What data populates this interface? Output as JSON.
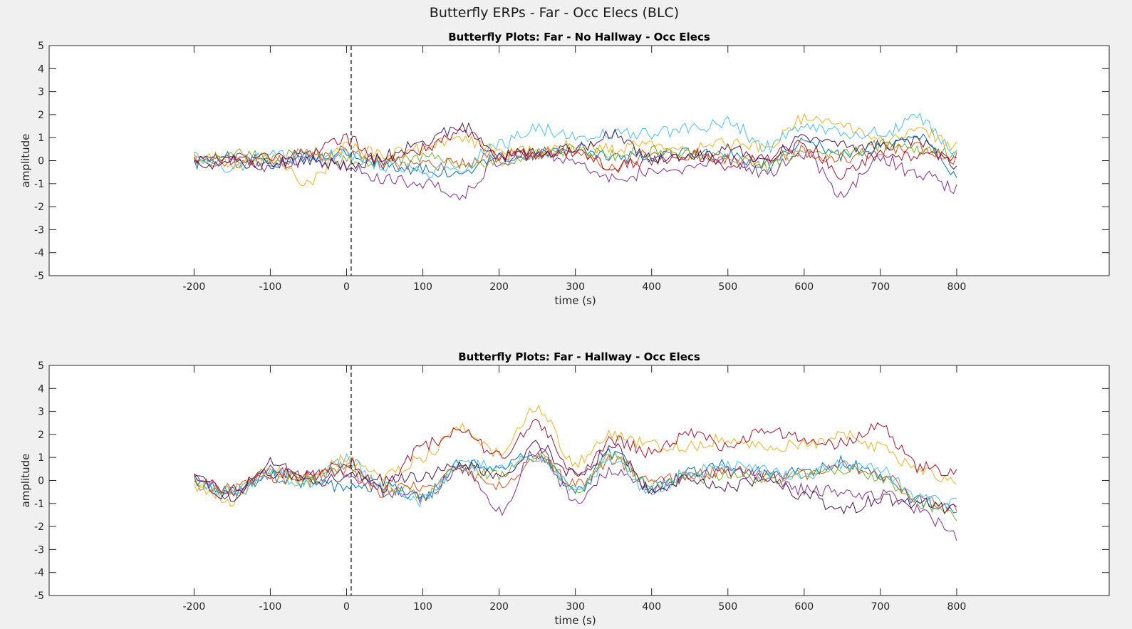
{
  "figure": {
    "title": "Butterfly ERPs - Far - Occ Elecs (BLC)"
  },
  "chart_data": [
    {
      "type": "line",
      "title": "Butterfly Plots: Far - No Hallway - Occ Elecs",
      "xlabel": "time (s)",
      "ylabel": "amplitude",
      "xlim": [
        -390,
        1000
      ],
      "ylim": [
        -5,
        5
      ],
      "xticks": [
        -200,
        -100,
        0,
        100,
        200,
        300,
        400,
        500,
        600,
        700,
        800
      ],
      "yticks": [
        5,
        4,
        3,
        2,
        1,
        0,
        -1,
        -2,
        -3,
        -4,
        -5
      ],
      "event_marker_x": 6,
      "grid": false,
      "x": [
        -200,
        -150,
        -100,
        -50,
        0,
        50,
        100,
        150,
        200,
        250,
        300,
        350,
        400,
        450,
        500,
        550,
        600,
        650,
        700,
        750,
        800
      ],
      "series": [
        {
          "color": "#0072BD",
          "values": [
            -0.1,
            0.2,
            -0.1,
            0.2,
            0.3,
            -0.2,
            -0.4,
            -0.6,
            0.1,
            0.3,
            0.6,
            0.1,
            0.2,
            0.3,
            0.2,
            -0.2,
            0.8,
            0.2,
            0.5,
            1.2,
            -0.5
          ]
        },
        {
          "color": "#D95319",
          "values": [
            0.1,
            -0.1,
            0.0,
            0.2,
            0.4,
            -0.1,
            -0.2,
            -0.1,
            0.2,
            0.3,
            0.5,
            -0.3,
            0.3,
            0.2,
            0.1,
            0.0,
            0.4,
            0.1,
            0.4,
            0.6,
            0.1
          ]
        },
        {
          "color": "#EDB120",
          "values": [
            0.2,
            -0.1,
            0.1,
            -1.0,
            0.6,
            0.3,
            0.5,
            1.0,
            0.4,
            0.5,
            0.7,
            0.5,
            0.8,
            0.5,
            0.7,
            0.6,
            1.8,
            1.5,
            0.9,
            1.4,
            0.6
          ]
        },
        {
          "color": "#7E2F8E",
          "values": [
            -0.2,
            0.1,
            -0.3,
            0.0,
            -0.2,
            -0.8,
            -1.0,
            -1.5,
            0.0,
            0.3,
            0.0,
            -0.8,
            -0.5,
            -0.3,
            0.0,
            -0.5,
            0.3,
            -1.4,
            0.1,
            -0.6,
            -1.2
          ]
        },
        {
          "color": "#77AC30",
          "values": [
            0.0,
            0.3,
            0.1,
            0.4,
            0.0,
            0.0,
            0.2,
            -0.3,
            0.0,
            0.3,
            0.5,
            0.2,
            0.4,
            0.3,
            0.2,
            -0.3,
            0.5,
            0.3,
            0.7,
            0.4,
            0.3
          ]
        },
        {
          "color": "#4DBEEE",
          "values": [
            0.2,
            -0.3,
            0.2,
            0.1,
            0.3,
            -0.2,
            -0.5,
            -0.3,
            0.7,
            1.4,
            1.0,
            1.2,
            1.2,
            1.4,
            1.7,
            0.6,
            1.5,
            1.2,
            1.2,
            1.8,
            0.4
          ]
        },
        {
          "color": "#A2142F",
          "values": [
            0.0,
            0.0,
            0.2,
            0.3,
            0.9,
            0.0,
            0.5,
            1.3,
            0.1,
            0.2,
            0.4,
            -0.2,
            0.0,
            0.3,
            -0.2,
            0.1,
            0.7,
            -0.6,
            0.3,
            0.2,
            0.1
          ]
        },
        {
          "color": "#4C1A4F",
          "values": [
            -0.2,
            0.0,
            -0.2,
            0.1,
            -0.3,
            0.2,
            0.8,
            1.5,
            0.2,
            0.4,
            0.5,
            1.2,
            0.1,
            0.2,
            0.5,
            0.0,
            1.0,
            0.6,
            0.7,
            0.8,
            -0.2
          ]
        }
      ]
    },
    {
      "type": "line",
      "title": "Butterfly Plots: Far - Hallway - Occ Elecs",
      "xlabel": "time (s)",
      "ylabel": "amplitude",
      "xlim": [
        -390,
        1000
      ],
      "ylim": [
        -5,
        5
      ],
      "xticks": [
        -200,
        -100,
        0,
        100,
        200,
        300,
        400,
        500,
        600,
        700,
        800
      ],
      "yticks": [
        5,
        4,
        3,
        2,
        1,
        0,
        -1,
        -2,
        -3,
        -4,
        -5
      ],
      "event_marker_x": 6,
      "grid": false,
      "x": [
        -200,
        -150,
        -100,
        -50,
        0,
        50,
        100,
        150,
        200,
        250,
        300,
        350,
        400,
        450,
        500,
        550,
        600,
        650,
        700,
        750,
        800
      ],
      "series": [
        {
          "color": "#0072BD",
          "values": [
            0.0,
            -0.5,
            0.2,
            -0.1,
            -0.3,
            -0.2,
            -0.8,
            0.8,
            0.5,
            1.2,
            -0.5,
            1.2,
            -0.3,
            0.3,
            0.7,
            0.3,
            0.4,
            0.8,
            0.2,
            -0.9,
            -1.3
          ]
        },
        {
          "color": "#D95319",
          "values": [
            -0.2,
            -0.4,
            0.1,
            0.1,
            0.4,
            -0.5,
            -0.2,
            0.4,
            -0.3,
            1.0,
            -0.2,
            0.9,
            -0.1,
            0.2,
            0.4,
            0.2,
            0.3,
            0.6,
            0.2,
            -0.8,
            -1.2
          ]
        },
        {
          "color": "#EDB120",
          "values": [
            -0.3,
            -0.9,
            0.6,
            0.0,
            1.0,
            0.2,
            1.0,
            2.3,
            1.2,
            3.2,
            0.8,
            2.0,
            1.5,
            1.5,
            1.8,
            1.5,
            1.5,
            2.0,
            1.5,
            0.5,
            0.0
          ]
        },
        {
          "color": "#7E2F8E",
          "values": [
            0.1,
            -0.6,
            0.5,
            0.2,
            0.3,
            -0.5,
            -0.7,
            0.5,
            -1.3,
            1.3,
            -0.8,
            0.4,
            -0.3,
            0.2,
            0.3,
            0.2,
            -0.4,
            -0.5,
            -0.6,
            -1.3,
            -2.4
          ]
        },
        {
          "color": "#77AC30",
          "values": [
            0.0,
            -0.5,
            0.4,
            0.0,
            0.6,
            -0.3,
            -0.6,
            0.6,
            0.2,
            1.2,
            -0.4,
            1.0,
            -0.2,
            0.1,
            0.2,
            0.1,
            0.3,
            0.5,
            0.1,
            -1.0,
            -1.5
          ]
        },
        {
          "color": "#4DBEEE",
          "values": [
            -0.1,
            -0.6,
            0.3,
            -0.2,
            0.9,
            -0.4,
            -0.9,
            0.7,
            0.6,
            1.1,
            -0.3,
            0.8,
            -0.5,
            0.4,
            0.6,
            0.4,
            0.2,
            0.7,
            0.5,
            -0.8,
            -1.0
          ]
        },
        {
          "color": "#A2142F",
          "values": [
            0.1,
            -0.4,
            0.3,
            0.2,
            0.8,
            -0.3,
            1.5,
            2.3,
            1.0,
            2.4,
            0.3,
            1.8,
            1.2,
            2.0,
            1.5,
            2.2,
            1.8,
            1.6,
            2.3,
            0.6,
            0.3
          ]
        },
        {
          "color": "#4C1A4F",
          "values": [
            0.0,
            -0.7,
            0.8,
            -0.1,
            0.2,
            0.0,
            0.2,
            0.6,
            0.3,
            1.5,
            0.2,
            1.4,
            -0.4,
            0.0,
            -0.3,
            0.1,
            -0.6,
            -1.3,
            -0.8,
            -1.0,
            -1.3
          ]
        }
      ]
    }
  ]
}
